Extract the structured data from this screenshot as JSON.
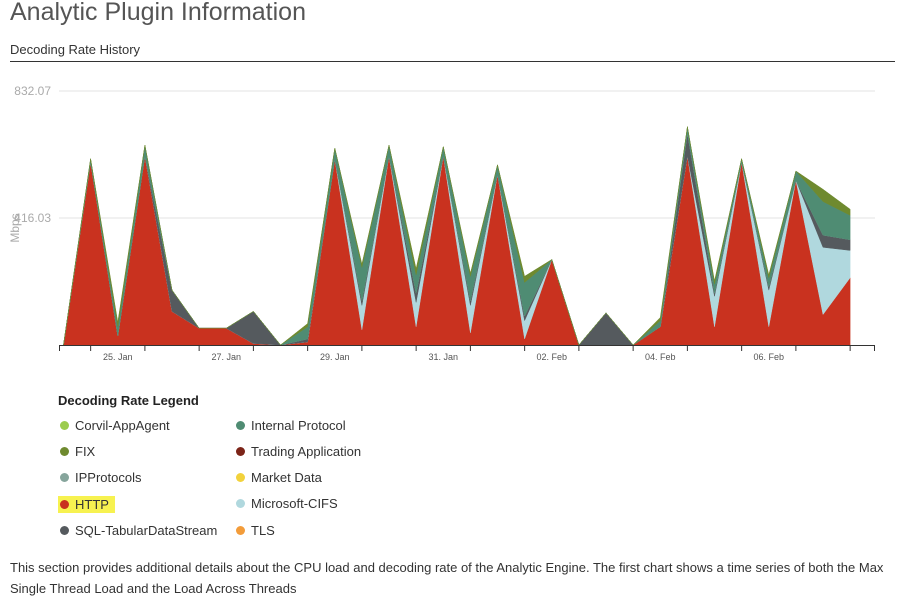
{
  "page": {
    "title": "Analytic Plugin Information",
    "section": "Decoding Rate History",
    "description": "This section provides additional details about the CPU load and decoding rate of the Analytic Engine. The first chart shows a time series of both the Max Single Thread Load and the Load Across Threads"
  },
  "legend": {
    "title": "Decoding Rate Legend",
    "items": [
      {
        "label": "Corvil-AppAgent",
        "color": "#9ccc4e",
        "highlighted": false
      },
      {
        "label": "Internal Protocol",
        "color": "#4f8c73",
        "highlighted": false
      },
      {
        "label": "FIX",
        "color": "#6f8a2f",
        "highlighted": false
      },
      {
        "label": "Trading Application",
        "color": "#7c2418",
        "highlighted": false
      },
      {
        "label": "IPProtocols",
        "color": "#86a59c",
        "highlighted": false
      },
      {
        "label": "Market Data",
        "color": "#f2d23c",
        "highlighted": false
      },
      {
        "label": "HTTP",
        "color": "#c9321f",
        "highlighted": true
      },
      {
        "label": "Microsoft-CIFS",
        "color": "#b0d8de",
        "highlighted": false
      },
      {
        "label": "SQL-TabularDataStream",
        "color": "#555a5e",
        "highlighted": false
      },
      {
        "label": "TLS",
        "color": "#f39c3a",
        "highlighted": false
      }
    ]
  },
  "chart_data": {
    "type": "area",
    "stacked": true,
    "title": "",
    "xlabel": "",
    "ylabel": "Mbps",
    "ylim": [
      0,
      832.07
    ],
    "yticks": [
      416.03,
      832.07
    ],
    "ytick_labels": [
      "416.03",
      "832.07"
    ],
    "xlim": [
      "2015-01-23T22:00",
      "2015-02-07T23:00"
    ],
    "xticks": [
      "2015-01-25",
      "2015-01-27",
      "2015-01-29",
      "2015-01-31",
      "2015-02-02",
      "2015-02-04",
      "2015-02-06"
    ],
    "xtick_labels": [
      "25. Jan",
      "27. Jan",
      "29. Jan",
      "31. Jan",
      "02. Feb",
      "04. Feb",
      "06. Feb"
    ],
    "grid": true,
    "x": [
      "2015-01-24T00:00",
      "2015-01-24T12:00",
      "2015-01-25T00:00",
      "2015-01-25T12:00",
      "2015-01-26T00:00",
      "2015-01-26T12:00",
      "2015-01-27T00:00",
      "2015-01-27T12:00",
      "2015-01-28T00:00",
      "2015-01-28T12:00",
      "2015-01-29T00:00",
      "2015-01-29T12:00",
      "2015-01-30T00:00",
      "2015-01-30T12:00",
      "2015-01-31T00:00",
      "2015-01-31T12:00",
      "2015-02-01T00:00",
      "2015-02-01T12:00",
      "2015-02-02T00:00",
      "2015-02-02T12:00",
      "2015-02-03T00:00",
      "2015-02-03T12:00",
      "2015-02-04T00:00",
      "2015-02-04T12:00",
      "2015-02-05T00:00",
      "2015-02-05T12:00",
      "2015-02-06T00:00",
      "2015-02-06T12:00",
      "2015-02-07T00:00",
      "2015-02-07T12:00"
    ],
    "series": [
      {
        "name": "HTTP",
        "color": "#c9321f",
        "values": [
          0,
          600,
          30,
          620,
          110,
          55,
          55,
          5,
          0,
          10,
          610,
          50,
          620,
          60,
          620,
          40,
          560,
          20,
          280,
          0,
          0,
          0,
          60,
          620,
          60,
          600,
          60,
          540,
          100,
          220
        ]
      },
      {
        "name": "Microsoft-CIFS",
        "color": "#b0d8de",
        "values": [
          0,
          0,
          0,
          0,
          0,
          0,
          0,
          0,
          0,
          0,
          0,
          80,
          0,
          80,
          0,
          90,
          0,
          60,
          0,
          0,
          0,
          0,
          0,
          0,
          100,
          0,
          120,
          0,
          220,
          90
        ]
      },
      {
        "name": "SQL-TabularDataStream",
        "color": "#555a5e",
        "values": [
          0,
          0,
          0,
          0,
          70,
          0,
          0,
          105,
          0,
          10,
          0,
          15,
          0,
          30,
          0,
          15,
          0,
          15,
          0,
          0,
          105,
          0,
          0,
          75,
          10,
          0,
          10,
          0,
          40,
          35
        ]
      },
      {
        "name": "IPProtocols",
        "color": "#86a59c",
        "values": [
          0,
          0,
          0,
          0,
          0,
          0,
          0,
          0,
          0,
          0,
          0,
          0,
          0,
          0,
          0,
          0,
          0,
          0,
          0,
          0,
          0,
          0,
          0,
          0,
          0,
          0,
          0,
          0,
          0,
          0
        ]
      },
      {
        "name": "Internal Protocol",
        "color": "#4f8c73",
        "values": [
          0,
          10,
          30,
          35,
          0,
          0,
          0,
          0,
          0,
          40,
          35,
          110,
          35,
          60,
          30,
          80,
          30,
          110,
          0,
          0,
          0,
          0,
          20,
          20,
          30,
          10,
          30,
          30,
          110,
          80
        ]
      },
      {
        "name": "FIX",
        "color": "#6f8a2f",
        "values": [
          0,
          0,
          15,
          0,
          0,
          0,
          0,
          0,
          0,
          10,
          0,
          10,
          0,
          20,
          0,
          10,
          0,
          20,
          0,
          0,
          0,
          0,
          10,
          0,
          10,
          0,
          10,
          0,
          40,
          20
        ]
      }
    ]
  }
}
